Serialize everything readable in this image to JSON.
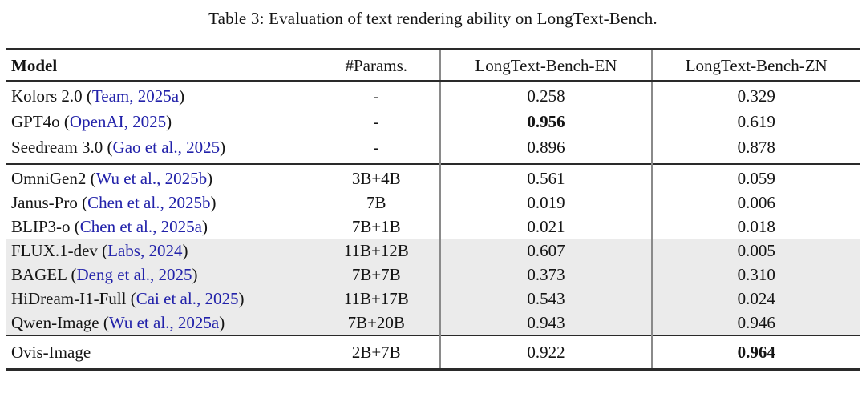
{
  "caption": "Table 3: Evaluation of text rendering ability on LongText-Bench.",
  "colors": {
    "citation_link": "#2222aa",
    "row_highlight": "#ebebeb",
    "rule": "#2a2a2a",
    "column_divider": "#8a8a8a"
  },
  "header": {
    "model": "Model",
    "params": "#Params.",
    "en": "LongText-Bench-EN",
    "zn": "LongText-Bench-ZN"
  },
  "rows": [
    {
      "pre": "Kolors 2.0 (",
      "cite": "Team, 2025a",
      "post": ")",
      "params": "-",
      "en": "0.258",
      "zn": "0.329"
    },
    {
      "pre": "GPT4o (",
      "cite": "OpenAI, 2025",
      "post": ")",
      "params": "-",
      "en": "0.956",
      "zn": "0.619"
    },
    {
      "pre": "Seedream 3.0 (",
      "cite": "Gao et al., 2025",
      "post": ")",
      "params": "-",
      "en": "0.896",
      "zn": "0.878"
    },
    {
      "pre": "OmniGen2 (",
      "cite": "Wu et al., 2025b",
      "post": ")",
      "params": "3B+4B",
      "en": "0.561",
      "zn": "0.059"
    },
    {
      "pre": "Janus-Pro (",
      "cite": "Chen et al., 2025b",
      "post": ")",
      "params": "7B",
      "en": "0.019",
      "zn": "0.006"
    },
    {
      "pre": "BLIP3-o (",
      "cite": "Chen et al., 2025a",
      "post": ")",
      "params": "7B+1B",
      "en": "0.021",
      "zn": "0.018"
    },
    {
      "pre": "FLUX.1-dev (",
      "cite": "Labs, 2024",
      "post": ")",
      "params": "11B+12B",
      "en": "0.607",
      "zn": "0.005"
    },
    {
      "pre": "BAGEL (",
      "cite": "Deng et al., 2025",
      "post": ")",
      "params": "7B+7B",
      "en": "0.373",
      "zn": "0.310"
    },
    {
      "pre": "HiDream-I1-Full (",
      "cite": "Cai et al., 2025",
      "post": ")",
      "params": "11B+17B",
      "en": "0.543",
      "zn": "0.024"
    },
    {
      "pre": "Qwen-Image (",
      "cite": "Wu et al., 2025a",
      "post": ")",
      "params": "7B+20B",
      "en": "0.943",
      "zn": "0.946"
    },
    {
      "pre": "Ovis-Image",
      "cite": "",
      "post": "",
      "params": "2B+7B",
      "en": "0.922",
      "zn": "0.964"
    }
  ]
}
